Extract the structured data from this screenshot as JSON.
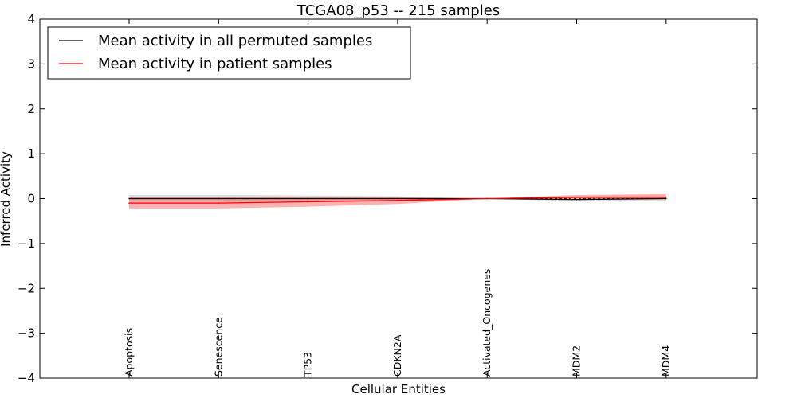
{
  "chart_data": {
    "type": "line",
    "title": "TCGA08_p53 -- 215 samples",
    "xlabel": "Cellular Entities",
    "ylabel": "Inferred Activity",
    "ylim": [
      -4,
      4
    ],
    "yticks": [
      4,
      3,
      2,
      1,
      0,
      -1,
      -2,
      -3,
      -4
    ],
    "ytick_labels": [
      "4",
      "3",
      "2",
      "1",
      "0",
      "−1",
      "−2",
      "−3",
      "−4"
    ],
    "categories": [
      "Apoptosis",
      "Senescence",
      "TP53",
      "CDKN2A",
      "Activated_Oncogenes",
      "MDM2",
      "MDM4"
    ],
    "legend_position": "top-left",
    "series": [
      {
        "name": "Mean activity in all permuted samples",
        "color": "#000000",
        "values": [
          0.0,
          0.0,
          0.0,
          0.0,
          0.0,
          -0.02,
          0.0
        ],
        "band_lower": [
          -0.07,
          -0.07,
          -0.06,
          -0.05,
          0.0,
          -0.06,
          -0.05
        ],
        "band_upper": [
          0.08,
          0.08,
          0.07,
          0.05,
          0.0,
          0.04,
          0.05
        ]
      },
      {
        "name": "Mean activity in patient samples",
        "color": "#ff0000",
        "values": [
          -0.1,
          -0.1,
          -0.07,
          -0.04,
          0.0,
          0.03,
          0.03
        ],
        "band_lower": [
          -0.22,
          -0.22,
          -0.18,
          -0.12,
          0.0,
          0.0,
          0.0
        ],
        "band_upper": [
          0.03,
          0.03,
          0.04,
          0.03,
          0.0,
          0.08,
          0.1
        ]
      }
    ]
  }
}
